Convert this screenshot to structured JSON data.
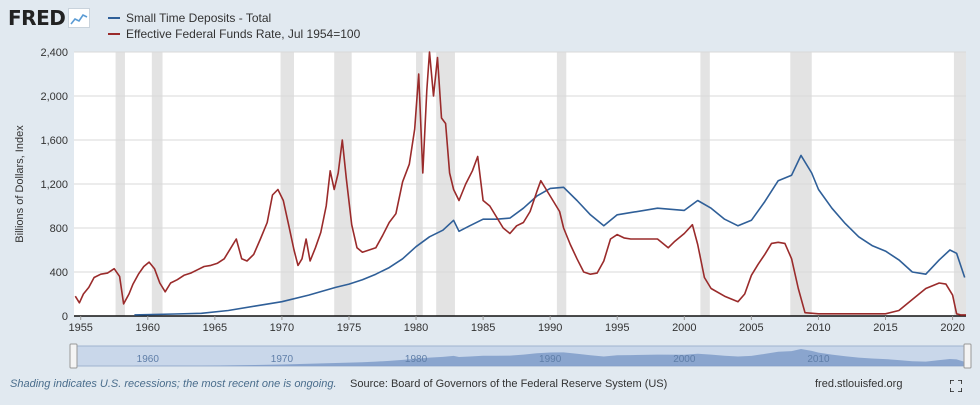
{
  "header": {
    "logo_text": "FRED",
    "legend": [
      {
        "label": "Small Time Deposits - Total",
        "color": "#2f5f98"
      },
      {
        "label": "Effective Federal Funds Rate, Jul 1954=100",
        "color": "#9a2b2b"
      }
    ]
  },
  "footer": {
    "note": "Shading indicates U.S. recessions; the most recent one is ongoing.",
    "source": "Source: Board of Governors of the Federal Reserve System (US)",
    "site": "fred.stlouisfed.org"
  },
  "icons": {
    "logo_mark": "line-chart-icon",
    "fullscreen": "fullscreen-icon"
  },
  "chart_data": {
    "type": "line",
    "ylabel": "Billions of Dollars, Index",
    "xlim": [
      1954.5,
      2021.0
    ],
    "ylim": [
      0,
      2400
    ],
    "y_ticks": [
      "0",
      "400",
      "800",
      "1,200",
      "1,600",
      "2,000",
      "2,400"
    ],
    "x_ticks": [
      "1955",
      "1960",
      "1965",
      "1970",
      "1975",
      "1980",
      "1985",
      "1990",
      "1995",
      "2000",
      "2005",
      "2010",
      "2015",
      "2020"
    ],
    "navigator_ticks": [
      "1960",
      "1970",
      "1980",
      "1990",
      "2000",
      "2010"
    ],
    "grid": "horizontal",
    "recessions": [
      [
        1957.6,
        1958.3
      ],
      [
        1960.3,
        1961.1
      ],
      [
        1969.9,
        1970.9
      ],
      [
        1973.9,
        1975.2
      ],
      [
        1980.0,
        1980.5
      ],
      [
        1981.5,
        1982.9
      ],
      [
        1990.5,
        1991.2
      ],
      [
        2001.2,
        2001.9
      ],
      [
        2007.9,
        2009.5
      ],
      [
        2020.1,
        2021.0
      ]
    ],
    "series": [
      {
        "name": "Small Time Deposits - Total",
        "color": "#2f5f98",
        "x": [
          1959.0,
          1962,
          1964,
          1966,
          1968,
          1970,
          1972,
          1974,
          1975,
          1976,
          1977,
          1978,
          1979,
          1980,
          1981,
          1982,
          1982.8,
          1983.2,
          1984,
          1985,
          1986,
          1987,
          1988,
          1989,
          1990,
          1991,
          1992,
          1993,
          1994,
          1995,
          1996,
          1998,
          2000,
          2001,
          2002,
          2003,
          2004,
          2005,
          2006,
          2007,
          2008,
          2008.7,
          2009.5,
          2010,
          2011,
          2012,
          2013,
          2014,
          2015,
          2016,
          2017,
          2018,
          2019,
          2019.8,
          2020.3,
          2020.9
        ],
        "values": [
          10,
          18,
          25,
          50,
          90,
          130,
          190,
          260,
          290,
          330,
          380,
          440,
          520,
          630,
          720,
          780,
          870,
          770,
          820,
          880,
          880,
          890,
          980,
          1090,
          1160,
          1170,
          1050,
          920,
          820,
          920,
          940,
          980,
          960,
          1050,
          980,
          880,
          820,
          870,
          1040,
          1230,
          1280,
          1460,
          1300,
          1150,
          980,
          840,
          720,
          640,
          590,
          510,
          400,
          380,
          510,
          600,
          570,
          350
        ]
      },
      {
        "name": "Effective Federal Funds Rate, Jul 1954=100",
        "color": "#9a2b2b",
        "x": [
          1954.6,
          1954.9,
          1955.2,
          1955.6,
          1956.0,
          1956.5,
          1957.0,
          1957.5,
          1957.9,
          1958.2,
          1958.6,
          1958.9,
          1959.3,
          1959.7,
          1960.1,
          1960.5,
          1960.9,
          1961.3,
          1961.7,
          1962.2,
          1962.7,
          1963.2,
          1963.7,
          1964.2,
          1964.7,
          1965.2,
          1965.7,
          1966.2,
          1966.6,
          1967.0,
          1967.4,
          1967.9,
          1968.4,
          1968.9,
          1969.3,
          1969.7,
          1970.1,
          1970.5,
          1970.9,
          1971.2,
          1971.5,
          1971.8,
          1972.1,
          1972.5,
          1972.9,
          1973.3,
          1973.6,
          1973.9,
          1974.2,
          1974.5,
          1974.8,
          1975.2,
          1975.6,
          1976.0,
          1976.5,
          1977.0,
          1977.5,
          1978.0,
          1978.5,
          1979.0,
          1979.5,
          1979.9,
          1980.2,
          1980.5,
          1980.8,
          1981.0,
          1981.3,
          1981.6,
          1981.9,
          1982.2,
          1982.5,
          1982.8,
          1983.2,
          1983.7,
          1984.2,
          1984.6,
          1985.0,
          1985.5,
          1986.0,
          1986.5,
          1987.0,
          1987.5,
          1988.0,
          1988.5,
          1989.0,
          1989.3,
          1989.7,
          1990.2,
          1990.7,
          1991.0,
          1991.5,
          1992.0,
          1992.5,
          1993.0,
          1993.5,
          1994.0,
          1994.5,
          1995.0,
          1995.5,
          1996.0,
          1997.0,
          1998.0,
          1998.8,
          1999.3,
          2000.0,
          2000.6,
          2001.0,
          2001.5,
          2002.0,
          2003.0,
          2004.0,
          2004.5,
          2005.0,
          2005.5,
          2006.0,
          2006.5,
          2007.0,
          2007.5,
          2008.0,
          2008.5,
          2009.0,
          2010.0,
          2012.0,
          2015.0,
          2016.0,
          2017.0,
          2018.0,
          2019.0,
          2019.5,
          2020.0,
          2020.3,
          2020.6,
          2021.0
        ],
        "values": [
          180,
          120,
          200,
          260,
          350,
          380,
          390,
          430,
          360,
          110,
          200,
          290,
          380,
          450,
          490,
          430,
          300,
          220,
          300,
          330,
          370,
          390,
          420,
          450,
          460,
          480,
          520,
          620,
          700,
          520,
          500,
          560,
          700,
          850,
          1100,
          1150,
          1050,
          830,
          600,
          460,
          520,
          700,
          500,
          620,
          760,
          1000,
          1320,
          1150,
          1300,
          1600,
          1250,
          830,
          620,
          580,
          600,
          620,
          730,
          850,
          930,
          1220,
          1380,
          1700,
          2200,
          1300,
          2050,
          2400,
          2000,
          2350,
          1800,
          1750,
          1300,
          1150,
          1050,
          1200,
          1320,
          1450,
          1050,
          1000,
          900,
          800,
          750,
          820,
          850,
          950,
          1130,
          1230,
          1150,
          1050,
          950,
          800,
          650,
          520,
          400,
          380,
          390,
          500,
          700,
          740,
          710,
          700,
          700,
          700,
          620,
          680,
          750,
          830,
          650,
          350,
          250,
          180,
          130,
          200,
          370,
          470,
          560,
          660,
          670,
          660,
          520,
          250,
          30,
          20,
          20,
          20,
          50,
          150,
          250,
          300,
          290,
          190,
          20,
          10,
          10
        ]
      }
    ]
  }
}
